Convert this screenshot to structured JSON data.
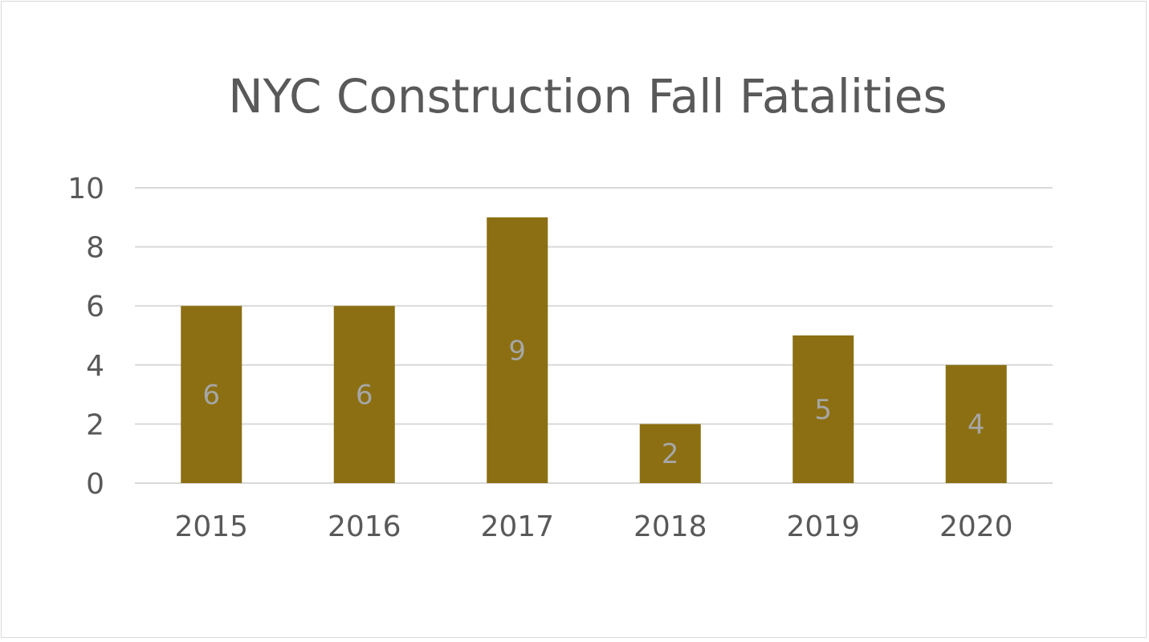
{
  "chart_data": {
    "type": "bar",
    "title": "NYC Construction Fall Fatalities",
    "categories": [
      "2015",
      "2016",
      "2017",
      "2018",
      "2019",
      "2020"
    ],
    "values": [
      6,
      6,
      9,
      2,
      5,
      4
    ],
    "ylim": [
      0,
      10
    ],
    "yticks": [
      "0",
      "2",
      "4",
      "6",
      "8",
      "10"
    ],
    "xlabel": "",
    "ylabel": "",
    "grid": true,
    "legend": "none",
    "data_labels": "inside-center",
    "colors": {
      "bar": "#8B6F12",
      "title": "#595959",
      "tick_label": "#595959",
      "data_label": "#a6a6a6",
      "gridline": "#d9d9d9",
      "border": "#d9d9d9",
      "background": "#ffffff"
    }
  }
}
